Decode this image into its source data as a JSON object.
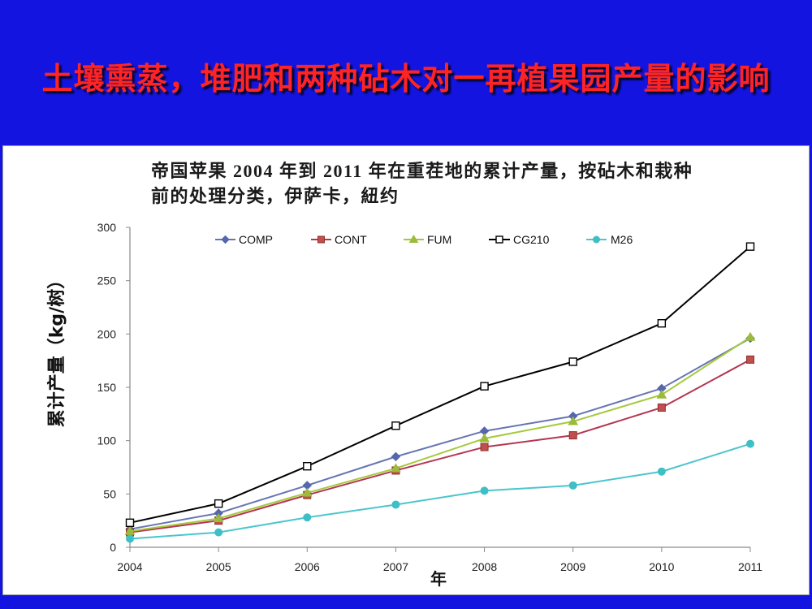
{
  "slide": {
    "title": "土壤熏蒸，堆肥和两种砧木对一再植果园产量的影响"
  },
  "colors": {
    "background": "#1414e1",
    "title": "#ff2424",
    "panel": "#ffffff",
    "axis": "#8a8a8a"
  },
  "chart_data": {
    "type": "line",
    "title_lines": [
      "帝国苹果 2004 年到 2011 年在重茬地的累计产量，按砧木和栽种",
      "前的处理分类，伊萨卡，紐约"
    ],
    "xlabel": "年",
    "ylabel": "累计产量（kg/树）",
    "x": [
      "2004",
      "2005",
      "2006",
      "2007",
      "2008",
      "2009",
      "2010",
      "2011"
    ],
    "ylim": [
      0,
      300
    ],
    "yticks": [
      0,
      50,
      100,
      150,
      200,
      250,
      300
    ],
    "grid": false,
    "legend": "top",
    "series": [
      {
        "name": "COMP",
        "color": "#6675b3",
        "marker_color": "#5567ad",
        "marker": "diamond",
        "values": [
          17,
          32,
          58,
          85,
          109,
          123,
          149,
          196
        ]
      },
      {
        "name": "CONT",
        "color": "#b43552",
        "marker_color": "#c0504d",
        "marker": "square",
        "values": [
          14,
          25,
          49,
          72,
          94,
          105,
          131,
          176
        ]
      },
      {
        "name": "FUM",
        "color": "#a5c93c",
        "marker_color": "#9bbb3a",
        "marker": "triangle",
        "values": [
          15,
          27,
          51,
          74,
          102,
          118,
          143,
          197
        ]
      },
      {
        "name": "CG210",
        "color": "#000000",
        "marker_color": "#000000",
        "marker": "open-square",
        "values": [
          23,
          41,
          76,
          114,
          151,
          174,
          210,
          282
        ]
      },
      {
        "name": "M26",
        "color": "#4ac6cc",
        "marker_color": "#3ebfc6",
        "marker": "circle",
        "values": [
          8,
          14,
          28,
          40,
          53,
          58,
          71,
          97
        ]
      }
    ]
  }
}
